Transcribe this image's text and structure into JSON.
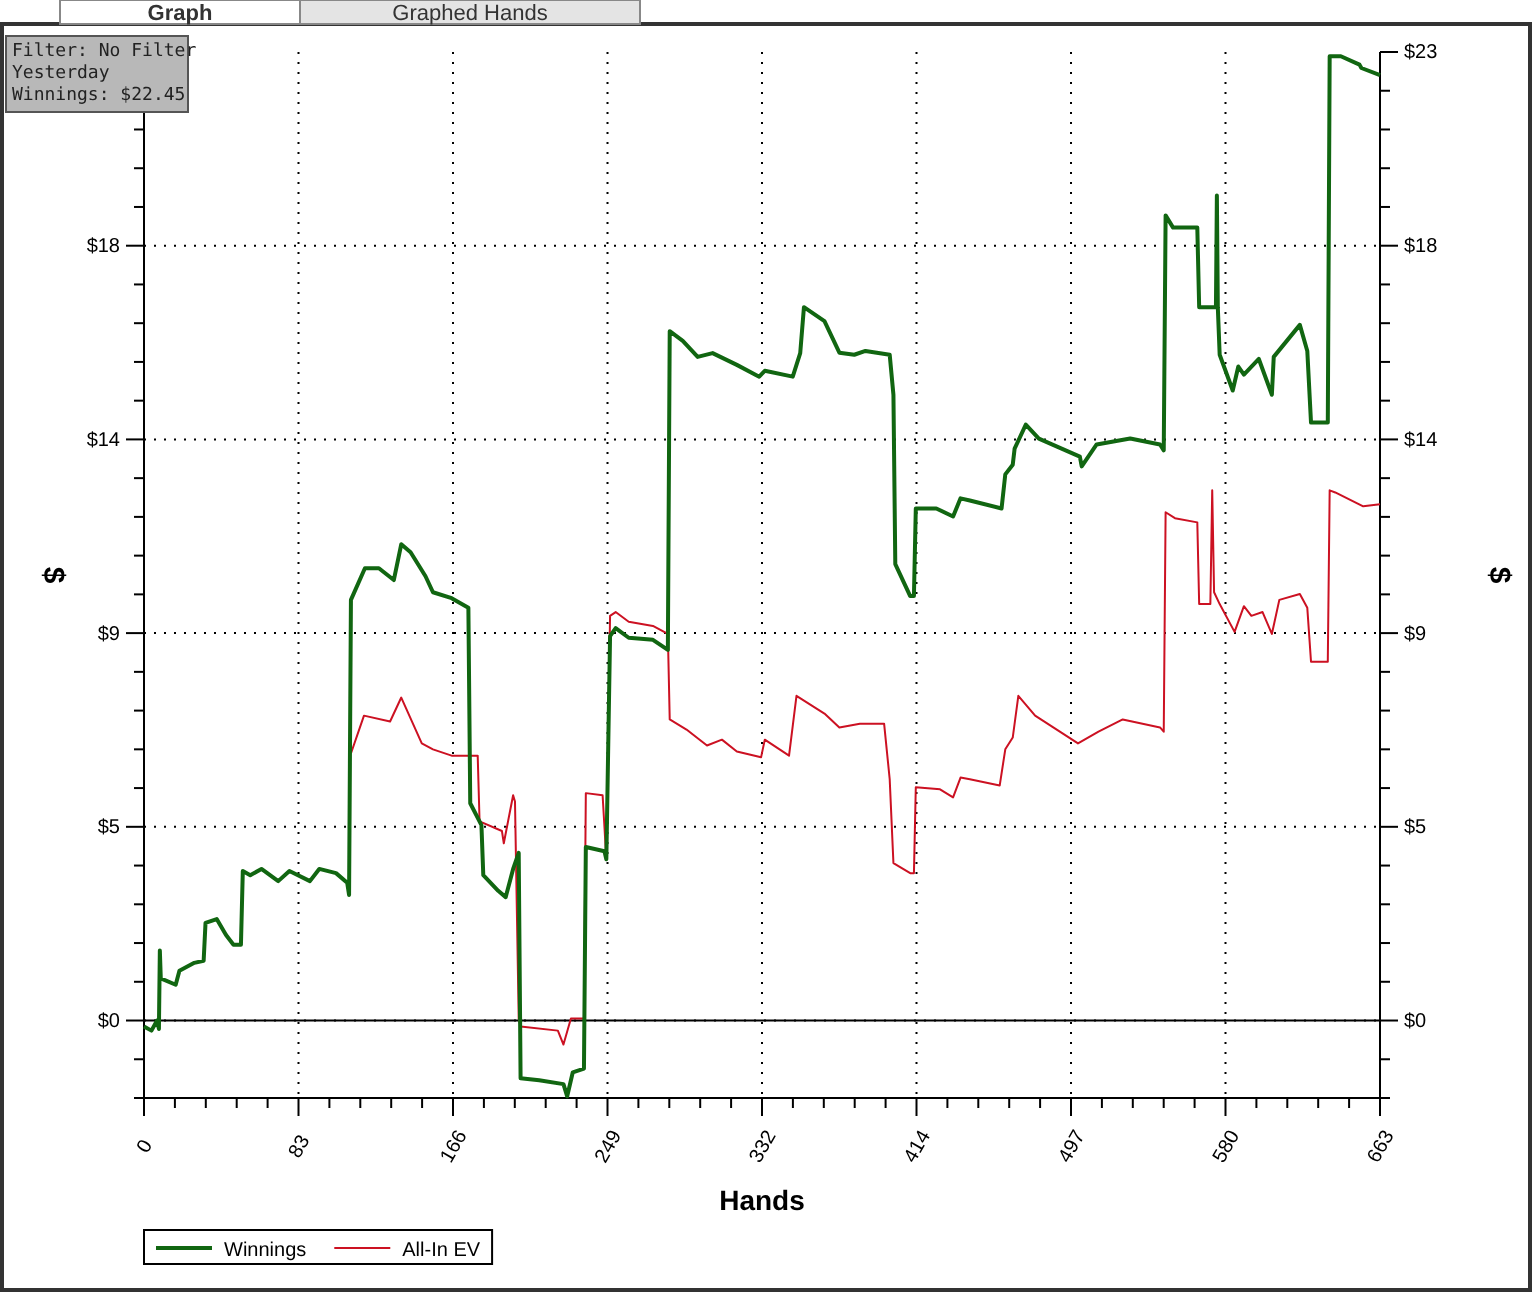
{
  "chart_data": {
    "type": "line",
    "xlabel": "Hands",
    "ylabel": "$",
    "y2label": "$",
    "annotations": [
      "Graph",
      "Graphed Hands",
      "Filter: No Filter",
      "Yesterday",
      "Winnings: $22.45"
    ],
    "xlim": [
      0,
      663
    ],
    "xticks": [
      0,
      {
        "value": 16.575,
        "label": null
      },
      {
        "value": 33.15,
        "label": null
      },
      {
        "value": 49.725,
        "label": null
      },
      {
        "value": 66.3,
        "label": null
      },
      {
        "value": 82.875,
        "label": "83"
      },
      {
        "value": 99.45,
        "label": null
      },
      {
        "value": 116.025,
        "label": null
      },
      {
        "value": 132.6,
        "label": null
      },
      {
        "value": 149.175,
        "label": null
      },
      {
        "value": 165.75,
        "label": "166"
      },
      {
        "value": 182.325,
        "label": null
      },
      {
        "value": 198.9,
        "label": null
      },
      {
        "value": 215.475,
        "label": null
      },
      {
        "value": 232.05,
        "label": null
      },
      {
        "value": 248.625,
        "label": "249"
      },
      {
        "value": 265.2,
        "label": null
      },
      {
        "value": 281.775,
        "label": null
      },
      {
        "value": 298.35,
        "label": null
      },
      {
        "value": 314.925,
        "label": null
      },
      {
        "value": 331.5,
        "label": "332"
      },
      {
        "value": 348.075,
        "label": null
      },
      {
        "value": 364.65,
        "label": null
      },
      {
        "value": 381.225,
        "label": null
      },
      {
        "value": 397.8,
        "label": null
      },
      {
        "value": 414.375,
        "label": "414"
      },
      {
        "value": 430.95,
        "label": null
      },
      {
        "value": 447.525,
        "label": null
      },
      {
        "value": 464.1,
        "label": null
      },
      {
        "value": 480.675,
        "label": null
      },
      {
        "value": 497.25,
        "label": "497"
      },
      {
        "value": 513.825,
        "label": null
      },
      {
        "value": 530.4,
        "label": null
      },
      {
        "value": 546.975,
        "label": null
      },
      {
        "value": 563.55,
        "label": null
      },
      {
        "value": 580.125,
        "label": "580"
      },
      {
        "value": 596.7,
        "label": null
      },
      {
        "value": 613.275,
        "label": null
      },
      {
        "value": 629.85,
        "label": null
      },
      {
        "value": 646.425,
        "label": null
      },
      663
    ],
    "ylim": [
      -1.84,
      23
    ],
    "yticks": [
      {
        "value": -1.84,
        "label": null
      },
      {
        "value": -0.92,
        "label": null
      },
      {
        "value": 0,
        "label": "$0"
      },
      {
        "value": 0.92,
        "label": null
      },
      {
        "value": 1.84,
        "label": null
      },
      {
        "value": 2.76,
        "label": null
      },
      {
        "value": 3.68,
        "label": null
      },
      {
        "value": 4.6,
        "label": "$5"
      },
      {
        "value": 5.52,
        "label": null
      },
      {
        "value": 6.44,
        "label": null
      },
      {
        "value": 7.36,
        "label": null
      },
      {
        "value": 8.28,
        "label": null
      },
      {
        "value": 9.2,
        "label": "$9"
      },
      {
        "value": 10.12,
        "label": null
      },
      {
        "value": 11.04,
        "label": null
      },
      {
        "value": 11.96,
        "label": null
      },
      {
        "value": 12.88,
        "label": null
      },
      {
        "value": 13.8,
        "label": "$14"
      },
      {
        "value": 14.72,
        "label": null
      },
      {
        "value": 15.64,
        "label": null
      },
      {
        "value": 16.56,
        "label": null
      },
      {
        "value": 17.48,
        "label": null
      },
      {
        "value": 18.4,
        "label": "$18"
      },
      {
        "value": 19.32,
        "label": null
      },
      {
        "value": 20.24,
        "label": null
      },
      {
        "value": 21.16,
        "label": null
      },
      {
        "value": 22.08,
        "label": null
      },
      {
        "value": 23,
        "label": null
      }
    ],
    "y2lim": [
      -1.84,
      23
    ],
    "y2ticks": [
      {
        "value": -1.84,
        "label": null
      },
      {
        "value": -0.92,
        "label": null
      },
      {
        "value": 0,
        "label": "$0"
      },
      {
        "value": 0.92,
        "label": null
      },
      {
        "value": 1.84,
        "label": null
      },
      {
        "value": 2.76,
        "label": null
      },
      {
        "value": 3.68,
        "label": null
      },
      {
        "value": 4.6,
        "label": "$5"
      },
      {
        "value": 5.52,
        "label": null
      },
      {
        "value": 6.44,
        "label": null
      },
      {
        "value": 7.36,
        "label": null
      },
      {
        "value": 8.28,
        "label": null
      },
      {
        "value": 9.2,
        "label": "$9"
      },
      {
        "value": 10.12,
        "label": null
      },
      {
        "value": 11.04,
        "label": null
      },
      {
        "value": 11.96,
        "label": null
      },
      {
        "value": 12.88,
        "label": null
      },
      {
        "value": 13.8,
        "label": "$14"
      },
      {
        "value": 14.72,
        "label": null
      },
      {
        "value": 15.64,
        "label": null
      },
      {
        "value": 16.56,
        "label": null
      },
      {
        "value": 17.48,
        "label": null
      },
      {
        "value": 18.4,
        "label": "$18"
      },
      {
        "value": 19.32,
        "label": null
      },
      {
        "value": 20.24,
        "label": null
      },
      {
        "value": 21.16,
        "label": null
      },
      {
        "value": 22.08,
        "label": null
      },
      {
        "value": 23,
        "label": "$23"
      }
    ],
    "grid": true,
    "legend": "bottom left",
    "marker": "none",
    "line_style": "solid",
    "ref_lines": [
      {
        "axis": "y",
        "value": 0,
        "color": "#000000"
      }
    ],
    "series": [
      {
        "name": "All-In EV",
        "color": "#cc1122",
        "x": [
          111,
          118,
          132,
          138,
          149,
          155,
          165,
          179,
          180,
          192,
          193,
          198,
          199,
          201,
          202,
          222,
          225,
          229,
          236,
          237,
          246,
          248,
          250,
          253,
          260,
          273,
          281,
          282,
          291,
          302,
          310,
          318,
          331,
          333,
          346,
          350,
          365,
          373,
          384,
          397,
          400,
          402,
          411,
          413,
          414,
          427,
          434,
          438,
          443,
          459,
          462,
          466,
          469,
          478,
          501,
          512,
          525,
          545,
          547,
          548,
          553,
          565,
          566,
          572,
          573,
          574,
          577,
          585,
          590,
          594,
          600,
          605,
          609,
          620,
          624,
          626,
          635,
          636,
          639,
          654,
          663
        ],
        "values": [
          6.34,
          7.24,
          7.1,
          7.67,
          6.58,
          6.44,
          6.29,
          6.29,
          4.73,
          4.5,
          4.21,
          5.35,
          5.2,
          0.05,
          -0.14,
          -0.24,
          -0.57,
          0.05,
          0.05,
          5.4,
          5.35,
          3.83,
          9.61,
          9.7,
          9.47,
          9.37,
          9.18,
          7.15,
          6.91,
          6.53,
          6.67,
          6.39,
          6.25,
          6.67,
          6.29,
          7.71,
          7.29,
          6.96,
          7.05,
          7.05,
          5.73,
          3.74,
          3.5,
          3.5,
          5.54,
          5.49,
          5.3,
          5.77,
          5.73,
          5.58,
          6.44,
          6.72,
          7.71,
          7.24,
          6.58,
          6.86,
          7.15,
          6.96,
          6.86,
          12.07,
          11.93,
          11.83,
          9.89,
          9.89,
          12.59,
          10.17,
          9.89,
          9.23,
          9.84,
          9.61,
          9.7,
          9.18,
          9.99,
          10.13,
          9.8,
          8.52,
          8.52,
          12.59,
          12.54,
          12.21,
          12.26
        ]
      },
      {
        "name": "Winnings",
        "color": "#116611",
        "x": [
          0,
          4,
          7,
          8,
          8.5,
          9,
          17,
          19,
          27,
          32,
          33,
          39,
          44,
          48,
          52,
          53,
          57,
          63,
          72,
          78,
          89,
          94,
          103,
          109,
          110,
          111,
          118.5,
          126,
          134,
          138,
          143,
          151,
          155,
          165,
          174,
          175,
          181,
          182,
          190,
          194,
          198,
          201,
          202,
          212,
          225,
          227,
          230,
          236,
          237,
          247,
          248,
          250,
          253,
          260,
          273,
          281,
          282,
          289,
          297,
          305,
          318,
          330,
          333,
          348,
          352,
          354,
          365,
          373,
          381,
          387,
          400,
          402,
          403,
          411,
          413,
          414,
          425,
          434,
          438,
          443,
          460,
          462,
          466,
          467,
          473,
          480,
          502,
          503,
          511,
          529,
          545,
          547,
          548,
          552,
          565,
          566,
          575,
          575.5,
          576,
          577,
          584,
          587,
          590,
          598,
          605,
          606,
          620,
          624,
          626,
          635,
          636,
          642,
          652,
          653,
          663
        ],
        "values": [
          -0.14,
          -0.24,
          0,
          -0.2,
          1.66,
          1,
          0.85,
          1.18,
          1.37,
          1.42,
          2.32,
          2.41,
          2.03,
          1.8,
          1.8,
          3.55,
          3.45,
          3.6,
          3.31,
          3.55,
          3.31,
          3.6,
          3.5,
          3.27,
          2.98,
          9.99,
          10.74,
          10.74,
          10.46,
          11.31,
          11.12,
          10.55,
          10.17,
          10.03,
          9.8,
          5.16,
          4.64,
          3.45,
          3.08,
          2.93,
          3.6,
          3.98,
          -1.37,
          -1.42,
          -1.51,
          -1.8,
          -1.23,
          -1.14,
          4.12,
          4.02,
          3.83,
          9.13,
          9.32,
          9.09,
          9.04,
          8.8,
          16.37,
          16.14,
          15.76,
          15.85,
          15.57,
          15.29,
          15.43,
          15.29,
          15.85,
          16.94,
          16.61,
          15.86,
          15.81,
          15.9,
          15.81,
          14.86,
          10.84,
          10.08,
          10.08,
          12.16,
          12.16,
          11.97,
          12.4,
          12.35,
          12.16,
          12.97,
          13.2,
          13.58,
          14.15,
          13.82,
          13.39,
          13.16,
          13.68,
          13.82,
          13.68,
          13.54,
          19.12,
          18.83,
          18.83,
          16.94,
          16.94,
          19.59,
          16.94,
          15.81,
          14.96,
          15.53,
          15.34,
          15.71,
          14.86,
          15.76,
          16.52,
          15.9,
          14.2,
          14.2,
          22.9,
          22.9,
          22.7,
          22.62,
          22.45
        ]
      }
    ]
  }
}
